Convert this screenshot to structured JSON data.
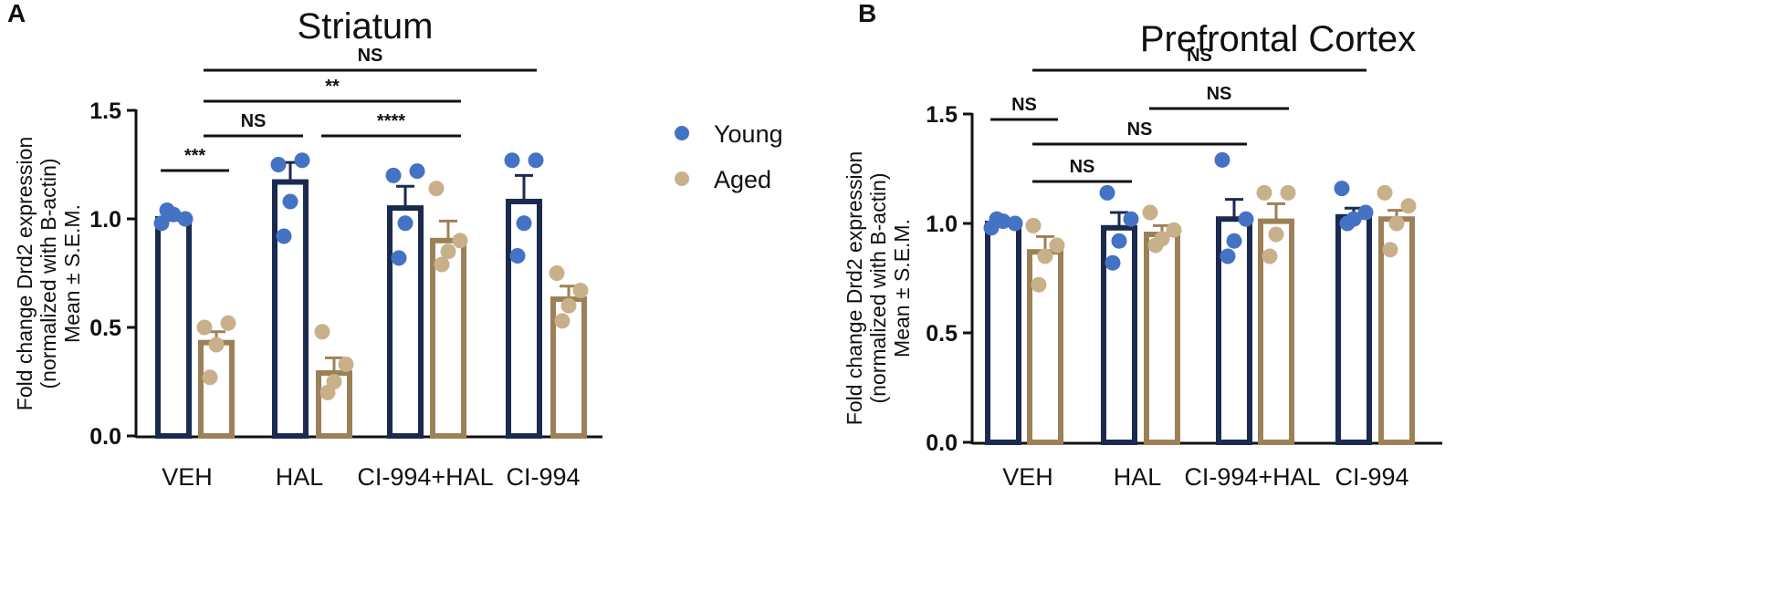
{
  "figure": {
    "legend": [
      {
        "name": "Young",
        "color": "#4472c4"
      },
      {
        "name": "Aged",
        "color": "#c8b08a"
      }
    ],
    "colors": {
      "young_bar": "#1b2a4e",
      "aged_bar": "#9c8158",
      "young_dot": "#4472c4",
      "aged_dot": "#c8b08a"
    }
  },
  "chart_data": [
    {
      "type": "bar",
      "panel": "A",
      "title": "Striatum",
      "ylabel_lines": [
        "Fold change Drd2 expression",
        "(normalized with B-actin)",
        "Mean ± S.E.M."
      ],
      "ylim": [
        0,
        1.5
      ],
      "yticks": [
        "0.0",
        "0.5",
        "1.0",
        "1.5"
      ],
      "categories": [
        "VEH",
        "HAL",
        "CI-994+HAL",
        "CI-994"
      ],
      "series": [
        {
          "name": "Young",
          "values": [
            1.0,
            1.17,
            1.05,
            1.08
          ],
          "sem": [
            0.02,
            0.09,
            0.1,
            0.12
          ],
          "points": [
            [
              0.98,
              1.0,
              1.02,
              1.04
            ],
            [
              1.25,
              1.27,
              1.08,
              0.92
            ],
            [
              1.2,
              1.22,
              0.98,
              0.82
            ],
            [
              1.27,
              1.27,
              0.98,
              0.83
            ]
          ]
        },
        {
          "name": "Aged",
          "values": [
            0.43,
            0.29,
            0.9,
            0.63
          ],
          "sem": [
            0.05,
            0.07,
            0.09,
            0.06
          ],
          "points": [
            [
              0.5,
              0.52,
              0.42,
              0.27
            ],
            [
              0.48,
              0.33,
              0.25,
              0.2
            ],
            [
              1.14,
              0.9,
              0.85,
              0.79
            ],
            [
              0.75,
              0.67,
              0.6,
              0.53
            ]
          ]
        }
      ],
      "annotations": [
        {
          "label": "NS",
          "from": "VEH-Aged",
          "to": "CI-994-Young"
        },
        {
          "label": "**",
          "from": "VEH-Aged",
          "to": "CI-994+HAL-Aged"
        },
        {
          "label": "NS",
          "from": "VEH-Aged",
          "to": "HAL-Young"
        },
        {
          "label": "****",
          "from": "HAL-Aged",
          "to": "CI-994+HAL-Aged"
        },
        {
          "label": "***",
          "from": "VEH-Young",
          "to": "VEH-Aged"
        }
      ]
    },
    {
      "type": "bar",
      "panel": "B",
      "title": "Prefrontal Cortex",
      "ylabel_lines": [
        "Fold change Drd2 expression",
        "(normalized with B-actin)",
        "Mean ± S.E.M."
      ],
      "ylim": [
        0,
        1.5
      ],
      "yticks": [
        "0.0",
        "0.5",
        "1.0",
        "1.5"
      ],
      "categories": [
        "VEH",
        "HAL",
        "CI-994+HAL",
        "CI-994"
      ],
      "series": [
        {
          "name": "Young",
          "values": [
            1.0,
            0.98,
            1.02,
            1.03
          ],
          "sem": [
            0.02,
            0.07,
            0.09,
            0.04
          ],
          "points": [
            [
              0.98,
              1.0,
              1.01,
              1.02
            ],
            [
              1.14,
              1.02,
              0.92,
              0.82
            ],
            [
              1.29,
              1.02,
              0.92,
              0.85
            ],
            [
              1.16,
              1.05,
              1.02,
              1.0
            ]
          ]
        },
        {
          "name": "Aged",
          "values": [
            0.87,
            0.95,
            1.01,
            1.02
          ],
          "sem": [
            0.07,
            0.04,
            0.08,
            0.04
          ],
          "points": [
            [
              0.99,
              0.9,
              0.85,
              0.72
            ],
            [
              1.05,
              0.97,
              0.93,
              0.9
            ],
            [
              1.14,
              1.14,
              0.95,
              0.85
            ],
            [
              1.14,
              1.08,
              1.0,
              0.88
            ]
          ]
        }
      ],
      "annotations": [
        {
          "label": "NS",
          "from": "VEH-Aged",
          "to": "CI-994-Young"
        },
        {
          "label": "NS",
          "from": "HAL-Aged",
          "to": "CI-994+HAL-Aged"
        },
        {
          "label": "NS",
          "from": "VEH-Aged",
          "to": "CI-994+HAL-Young"
        },
        {
          "label": "NS",
          "from": "VEH-Aged",
          "to": "HAL-Young"
        },
        {
          "label": "NS",
          "from": "VEH-Young",
          "to": "VEH-Aged"
        }
      ]
    }
  ]
}
